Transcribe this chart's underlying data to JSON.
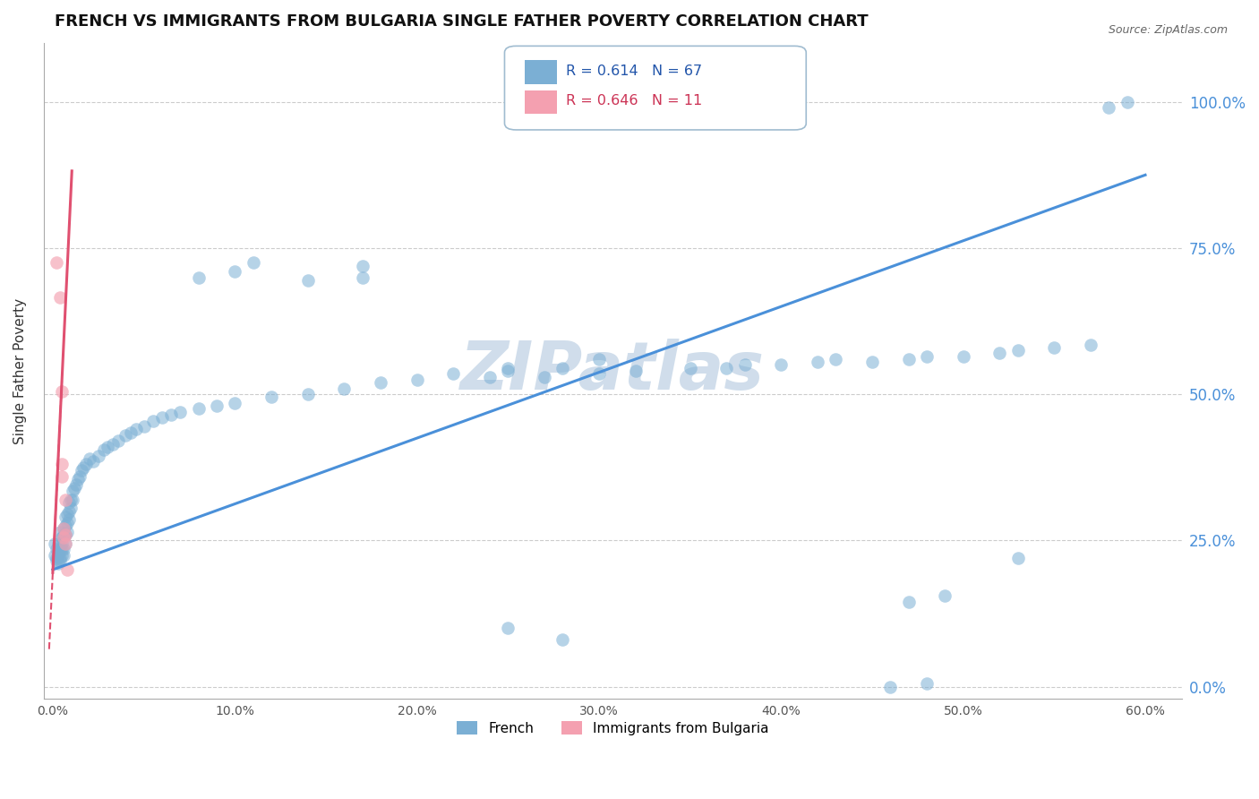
{
  "title": "FRENCH VS IMMIGRANTS FROM BULGARIA SINGLE FATHER POVERTY CORRELATION CHART",
  "source": "Source: ZipAtlas.com",
  "ylabel_label": "Single Father Poverty",
  "xlim": [
    -0.005,
    0.62
  ],
  "ylim": [
    -0.02,
    1.1
  ],
  "xtick_vals": [
    0,
    0.1,
    0.2,
    0.3,
    0.4,
    0.5,
    0.6
  ],
  "xtick_labels": [
    "0.0%",
    "10.0%",
    "20.0%",
    "30.0%",
    "40.0%",
    "50.0%",
    "60.0%"
  ],
  "ytick_vals": [
    0,
    0.25,
    0.5,
    0.75,
    1.0
  ],
  "ytick_labels": [
    "0.0%",
    "25.0%",
    "50.0%",
    "75.0%",
    "100.0%"
  ],
  "french_R": 0.614,
  "french_N": 67,
  "bulgaria_R": 0.646,
  "bulgaria_N": 11,
  "french_color": "#7bafd4",
  "bulgaria_color": "#f4a0b0",
  "trendline_french_color": "#4a90d9",
  "trendline_bulgaria_color": "#e05070",
  "watermark_color": "#c8d8e8",
  "right_axis_color": "#4a90d9",
  "french_line_x0": 0.0,
  "french_line_y0": 0.2,
  "french_line_x1": 0.6,
  "french_line_y1": 0.875,
  "bulgaria_line_x0": 0.0,
  "bulgaria_line_y0": 0.195,
  "bulgaria_line_x1": 0.012,
  "bulgaria_line_y1": 0.98,
  "french_points": [
    [
      0.001,
      0.245
    ],
    [
      0.001,
      0.225
    ],
    [
      0.002,
      0.22
    ],
    [
      0.002,
      0.215
    ],
    [
      0.002,
      0.235
    ],
    [
      0.003,
      0.245
    ],
    [
      0.003,
      0.23
    ],
    [
      0.003,
      0.21
    ],
    [
      0.003,
      0.225
    ],
    [
      0.004,
      0.265
    ],
    [
      0.004,
      0.235
    ],
    [
      0.004,
      0.22
    ],
    [
      0.004,
      0.215
    ],
    [
      0.005,
      0.255
    ],
    [
      0.005,
      0.245
    ],
    [
      0.005,
      0.235
    ],
    [
      0.005,
      0.225
    ],
    [
      0.006,
      0.27
    ],
    [
      0.006,
      0.26
    ],
    [
      0.006,
      0.235
    ],
    [
      0.006,
      0.225
    ],
    [
      0.007,
      0.29
    ],
    [
      0.007,
      0.275
    ],
    [
      0.007,
      0.26
    ],
    [
      0.007,
      0.245
    ],
    [
      0.008,
      0.295
    ],
    [
      0.008,
      0.28
    ],
    [
      0.008,
      0.265
    ],
    [
      0.009,
      0.315
    ],
    [
      0.009,
      0.3
    ],
    [
      0.009,
      0.285
    ],
    [
      0.01,
      0.32
    ],
    [
      0.01,
      0.305
    ],
    [
      0.011,
      0.335
    ],
    [
      0.011,
      0.32
    ],
    [
      0.012,
      0.34
    ],
    [
      0.013,
      0.345
    ],
    [
      0.014,
      0.355
    ],
    [
      0.015,
      0.36
    ],
    [
      0.016,
      0.37
    ],
    [
      0.017,
      0.375
    ],
    [
      0.018,
      0.38
    ],
    [
      0.02,
      0.39
    ],
    [
      0.022,
      0.385
    ],
    [
      0.025,
      0.395
    ],
    [
      0.028,
      0.405
    ],
    [
      0.03,
      0.41
    ],
    [
      0.033,
      0.415
    ],
    [
      0.036,
      0.42
    ],
    [
      0.04,
      0.43
    ],
    [
      0.043,
      0.435
    ],
    [
      0.046,
      0.44
    ],
    [
      0.05,
      0.445
    ],
    [
      0.055,
      0.455
    ],
    [
      0.06,
      0.46
    ],
    [
      0.065,
      0.465
    ],
    [
      0.07,
      0.47
    ],
    [
      0.08,
      0.475
    ],
    [
      0.09,
      0.48
    ],
    [
      0.1,
      0.485
    ],
    [
      0.12,
      0.495
    ],
    [
      0.14,
      0.5
    ],
    [
      0.16,
      0.51
    ],
    [
      0.18,
      0.52
    ],
    [
      0.25,
      0.545
    ],
    [
      0.3,
      0.56
    ],
    [
      0.1,
      0.71
    ],
    [
      0.11,
      0.725
    ],
    [
      0.17,
      0.72
    ]
  ],
  "french_extra_points": [
    [
      0.08,
      0.7
    ],
    [
      0.14,
      0.695
    ],
    [
      0.17,
      0.7
    ],
    [
      0.2,
      0.525
    ],
    [
      0.22,
      0.535
    ],
    [
      0.24,
      0.53
    ],
    [
      0.25,
      0.54
    ],
    [
      0.27,
      0.53
    ],
    [
      0.28,
      0.545
    ],
    [
      0.3,
      0.535
    ],
    [
      0.32,
      0.54
    ],
    [
      0.35,
      0.545
    ],
    [
      0.37,
      0.545
    ],
    [
      0.38,
      0.55
    ],
    [
      0.4,
      0.55
    ],
    [
      0.42,
      0.555
    ],
    [
      0.43,
      0.56
    ],
    [
      0.45,
      0.555
    ],
    [
      0.47,
      0.56
    ],
    [
      0.48,
      0.565
    ],
    [
      0.5,
      0.565
    ],
    [
      0.52,
      0.57
    ],
    [
      0.53,
      0.575
    ],
    [
      0.55,
      0.58
    ],
    [
      0.57,
      0.585
    ],
    [
      0.58,
      0.99
    ],
    [
      0.59,
      1.0
    ],
    [
      0.25,
      0.1
    ],
    [
      0.28,
      0.08
    ],
    [
      0.47,
      0.145
    ],
    [
      0.49,
      0.155
    ],
    [
      0.53,
      0.22
    ],
    [
      0.46,
      0.0
    ],
    [
      0.48,
      0.005
    ]
  ],
  "bulgaria_points": [
    [
      0.002,
      0.725
    ],
    [
      0.004,
      0.665
    ],
    [
      0.005,
      0.505
    ],
    [
      0.005,
      0.38
    ],
    [
      0.005,
      0.36
    ],
    [
      0.006,
      0.27
    ],
    [
      0.006,
      0.255
    ],
    [
      0.007,
      0.26
    ],
    [
      0.007,
      0.245
    ],
    [
      0.007,
      0.32
    ],
    [
      0.008,
      0.2
    ]
  ]
}
